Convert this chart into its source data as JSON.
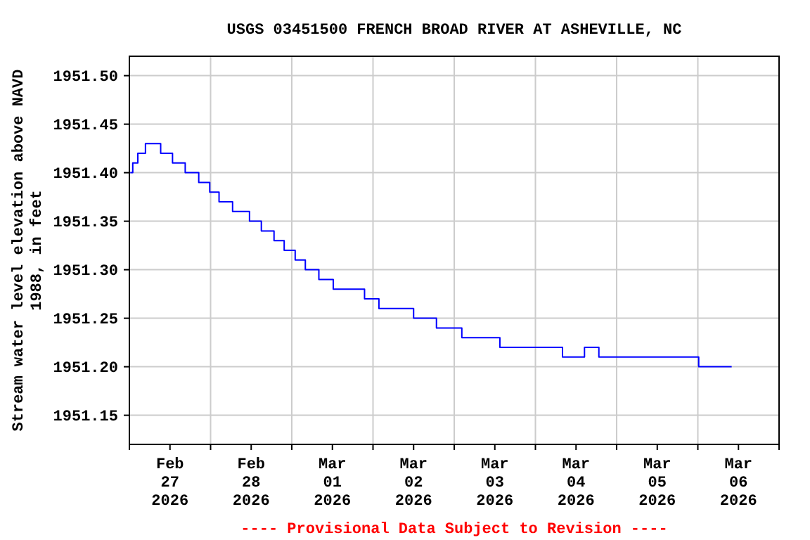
{
  "chart_data": {
    "type": "step",
    "title": "USGS 03451500 FRENCH BROAD RIVER AT ASHEVILLE, NC",
    "ylabel": "Stream water level elevation above NAVD\n1988, in feet",
    "annotations": [
      "---- Provisional Data Subject to Revision ----"
    ],
    "xlim": [
      "2026-02-27T00:00",
      "2026-03-07T00:00"
    ],
    "xticks": [
      {
        "value": "2026-02-27T00:00",
        "label": null
      },
      {
        "value": "2026-02-27T12:00",
        "label": "Feb\n27\n2026"
      },
      {
        "value": "2026-02-28T00:00",
        "label": null
      },
      {
        "value": "2026-02-28T12:00",
        "label": "Feb\n28\n2026"
      },
      {
        "value": "2026-03-01T00:00",
        "label": null
      },
      {
        "value": "2026-03-01T12:00",
        "label": "Mar\n01\n2026"
      },
      {
        "value": "2026-03-02T00:00",
        "label": null
      },
      {
        "value": "2026-03-02T12:00",
        "label": "Mar\n02\n2026"
      },
      {
        "value": "2026-03-03T00:00",
        "label": null
      },
      {
        "value": "2026-03-03T12:00",
        "label": "Mar\n03\n2026"
      },
      {
        "value": "2026-03-04T00:00",
        "label": null
      },
      {
        "value": "2026-03-04T12:00",
        "label": "Mar\n04\n2026"
      },
      {
        "value": "2026-03-05T00:00",
        "label": null
      },
      {
        "value": "2026-03-05T12:00",
        "label": "Mar\n05\n2026"
      },
      {
        "value": "2026-03-06T00:00",
        "label": null
      },
      {
        "value": "2026-03-06T12:00",
        "label": "Mar\n06\n2026"
      },
      {
        "value": "2026-03-07T00:00",
        "label": null
      }
    ],
    "ylim": [
      1951.12,
      1951.52
    ],
    "yticks": [
      {
        "value": 1951.15,
        "label": "1951.15"
      },
      {
        "value": 1951.2,
        "label": "1951.20"
      },
      {
        "value": 1951.25,
        "label": "1951.25"
      },
      {
        "value": 1951.3,
        "label": "1951.30"
      },
      {
        "value": 1951.35,
        "label": "1951.35"
      },
      {
        "value": 1951.4,
        "label": "1951.40"
      },
      {
        "value": 1951.45,
        "label": "1951.45"
      },
      {
        "value": 1951.5,
        "label": "1951.50"
      }
    ],
    "grid": true,
    "series": [
      {
        "color": "#0000ff",
        "x": [
          "2026-02-27T00:15",
          "2026-02-27T01:00",
          "2026-02-27T02:30",
          "2026-02-27T04:45",
          "2026-02-27T09:15",
          "2026-02-27T12:45",
          "2026-02-27T16:30",
          "2026-02-27T20:30",
          "2026-02-27T23:45",
          "2026-02-28T02:30",
          "2026-02-28T06:30",
          "2026-02-28T11:30",
          "2026-02-28T15:00",
          "2026-02-28T18:45",
          "2026-02-28T21:45",
          "2026-03-01T01:00",
          "2026-03-01T04:00",
          "2026-03-01T08:00",
          "2026-03-01T12:15",
          "2026-03-01T21:30",
          "2026-03-02T01:45",
          "2026-03-02T12:00",
          "2026-03-02T18:45",
          "2026-03-03T02:15",
          "2026-03-03T13:30",
          "2026-03-04T08:00",
          "2026-03-04T14:30",
          "2026-03-04T18:45",
          "2026-03-06T00:15",
          "2026-03-06T10:00"
        ],
        "values": [
          1951.4,
          1951.41,
          1951.42,
          1951.43,
          1951.42,
          1951.41,
          1951.4,
          1951.39,
          1951.38,
          1951.37,
          1951.36,
          1951.35,
          1951.34,
          1951.33,
          1951.32,
          1951.31,
          1951.3,
          1951.29,
          1951.28,
          1951.27,
          1951.26,
          1951.25,
          1951.24,
          1951.23,
          1951.22,
          1951.21,
          1951.22,
          1951.21,
          1951.2,
          1951.2
        ]
      }
    ]
  }
}
